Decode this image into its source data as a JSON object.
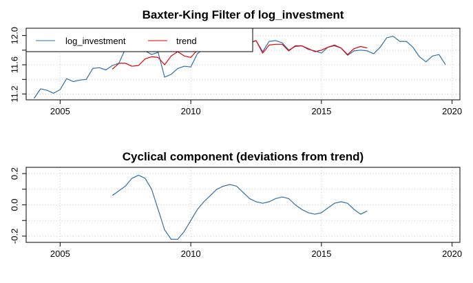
{
  "chart_data": [
    {
      "type": "line",
      "title": "Baxter-King Filter of log_investment",
      "xlabel": "",
      "ylabel": "",
      "xlim": [
        2003.7,
        2020.3
      ],
      "ylim": [
        11.12,
        12.1
      ],
      "xticks": [
        "2005",
        "2010",
        "2015",
        "2020"
      ],
      "yticks": [
        "11.2",
        "11.6",
        "12.0"
      ],
      "grid": true,
      "legend_position": "top-left",
      "series": [
        {
          "name": "log_investment",
          "color": "#2f6fa8",
          "x": [
            2004.0,
            2004.25,
            2004.5,
            2004.75,
            2005.0,
            2005.25,
            2005.5,
            2005.75,
            2006.0,
            2006.25,
            2006.5,
            2006.75,
            2007.0,
            2007.25,
            2007.5,
            2007.75,
            2008.0,
            2008.25,
            2008.5,
            2008.75,
            2009.0,
            2009.25,
            2009.5,
            2009.75,
            2010.0,
            2010.25,
            2010.5,
            2010.75,
            2011.0,
            2011.25,
            2011.5,
            2011.75,
            2012.0,
            2012.25,
            2012.5,
            2012.75,
            2013.0,
            2013.25,
            2013.5,
            2013.75,
            2014.0,
            2014.25,
            2014.5,
            2014.75,
            2015.0,
            2015.25,
            2015.5,
            2015.75,
            2016.0,
            2016.25,
            2016.5,
            2016.75,
            2017.0,
            2017.25,
            2017.5,
            2017.75,
            2018.0,
            2018.25,
            2018.5,
            2018.75,
            2019.0,
            2019.25,
            2019.5,
            2019.75
          ],
          "y": [
            11.14,
            11.27,
            11.25,
            11.21,
            11.26,
            11.41,
            11.37,
            11.39,
            11.4,
            11.55,
            11.56,
            11.53,
            11.59,
            11.62,
            11.82,
            11.85,
            11.8,
            11.79,
            11.74,
            11.77,
            11.43,
            11.47,
            11.55,
            11.58,
            11.57,
            11.75,
            11.82,
            11.85,
            11.83,
            11.89,
            11.9,
            11.8,
            11.85,
            11.9,
            11.93,
            11.78,
            11.92,
            11.93,
            11.9,
            11.8,
            11.85,
            11.86,
            11.81,
            11.79,
            11.76,
            11.84,
            11.86,
            11.83,
            11.73,
            11.79,
            11.8,
            11.79,
            11.75,
            11.84,
            11.97,
            11.99,
            11.92,
            11.92,
            11.84,
            11.71,
            11.64,
            11.72,
            11.74,
            11.6
          ]
        },
        {
          "name": "trend",
          "color": "#e00000",
          "x": [
            2007.0,
            2007.25,
            2007.5,
            2007.75,
            2008.0,
            2008.25,
            2008.5,
            2008.75,
            2009.0,
            2009.25,
            2009.5,
            2009.75,
            2010.0,
            2010.25,
            2010.5,
            2010.75,
            2011.0,
            2011.25,
            2011.5,
            2011.75,
            2012.0,
            2012.25,
            2012.5,
            2012.75,
            2013.0,
            2013.25,
            2013.5,
            2013.75,
            2014.0,
            2014.25,
            2014.5,
            2014.75,
            2015.0,
            2015.25,
            2015.5,
            2015.75,
            2016.0,
            2016.25,
            2016.5,
            2016.75
          ],
          "y": [
            11.54,
            11.62,
            11.62,
            11.58,
            11.59,
            11.68,
            11.71,
            11.7,
            11.6,
            11.72,
            11.78,
            11.72,
            11.7,
            11.8,
            11.88,
            11.87,
            11.84,
            11.87,
            11.88,
            11.78,
            11.84,
            11.9,
            11.93,
            11.76,
            11.87,
            11.88,
            11.88,
            11.79,
            11.86,
            11.86,
            11.82,
            11.78,
            11.8,
            11.84,
            11.87,
            11.83,
            11.74,
            11.82,
            11.85,
            11.83
          ]
        }
      ]
    },
    {
      "type": "line",
      "title": "Cyclical component (deviations from trend)",
      "xlabel": "",
      "ylabel": "",
      "xlim": [
        2003.7,
        2020.3
      ],
      "ylim": [
        -0.24,
        0.24
      ],
      "xticks": [
        "2005",
        "2010",
        "2015",
        "2020"
      ],
      "yticks": [
        "-0.2",
        "0.0",
        "0.2"
      ],
      "grid": true,
      "series": [
        {
          "color": "#2f6fa8",
          "x": [
            2007.0,
            2007.25,
            2007.5,
            2007.75,
            2008.0,
            2008.25,
            2008.5,
            2008.75,
            2009.0,
            2009.25,
            2009.5,
            2009.75,
            2010.0,
            2010.25,
            2010.5,
            2010.75,
            2011.0,
            2011.25,
            2011.5,
            2011.75,
            2012.0,
            2012.25,
            2012.5,
            2012.75,
            2013.0,
            2013.25,
            2013.5,
            2013.75,
            2014.0,
            2014.25,
            2014.5,
            2014.75,
            2015.0,
            2015.25,
            2015.5,
            2015.75,
            2016.0,
            2016.25,
            2016.5,
            2016.75
          ],
          "y": [
            0.06,
            0.09,
            0.12,
            0.17,
            0.19,
            0.17,
            0.1,
            -0.03,
            -0.16,
            -0.22,
            -0.22,
            -0.17,
            -0.1,
            -0.03,
            0.02,
            0.06,
            0.1,
            0.12,
            0.13,
            0.12,
            0.08,
            0.04,
            0.02,
            0.01,
            0.02,
            0.04,
            0.05,
            0.04,
            0.0,
            -0.03,
            -0.05,
            -0.06,
            -0.05,
            -0.02,
            0.01,
            0.02,
            0.01,
            -0.03,
            -0.06,
            -0.04
          ]
        }
      ]
    }
  ]
}
